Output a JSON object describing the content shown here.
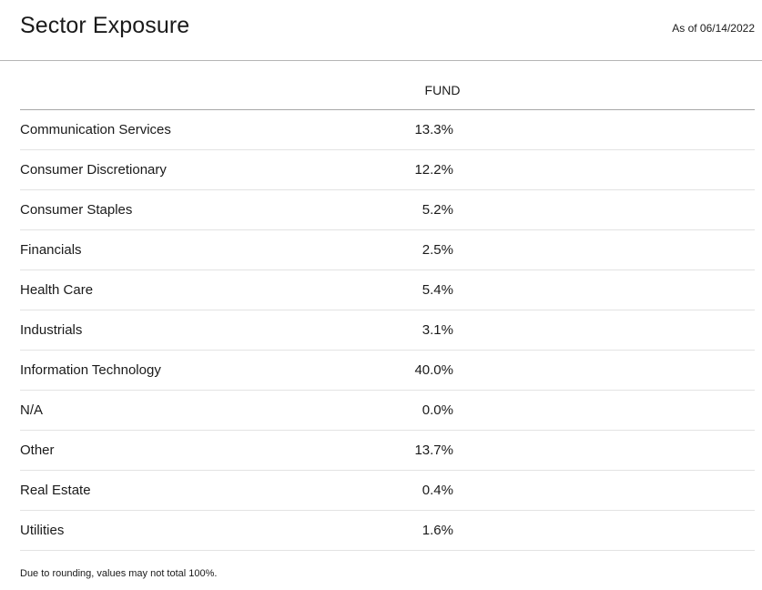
{
  "header": {
    "title": "Sector Exposure",
    "as_of": "As of 06/14/2022"
  },
  "table": {
    "column_header": "FUND",
    "rows": [
      {
        "sector": "Communication Services",
        "fund": "13.3%"
      },
      {
        "sector": "Consumer Discretionary",
        "fund": "12.2%"
      },
      {
        "sector": "Consumer Staples",
        "fund": "5.2%"
      },
      {
        "sector": "Financials",
        "fund": "2.5%"
      },
      {
        "sector": "Health Care",
        "fund": "5.4%"
      },
      {
        "sector": "Industrials",
        "fund": "3.1%"
      },
      {
        "sector": "Information Technology",
        "fund": "40.0%"
      },
      {
        "sector": "N/A",
        "fund": "0.0%"
      },
      {
        "sector": "Other",
        "fund": "13.7%"
      },
      {
        "sector": "Real Estate",
        "fund": "0.4%"
      },
      {
        "sector": "Utilities",
        "fund": "1.6%"
      }
    ]
  },
  "footnote": "Due to rounding, values may not total 100%."
}
